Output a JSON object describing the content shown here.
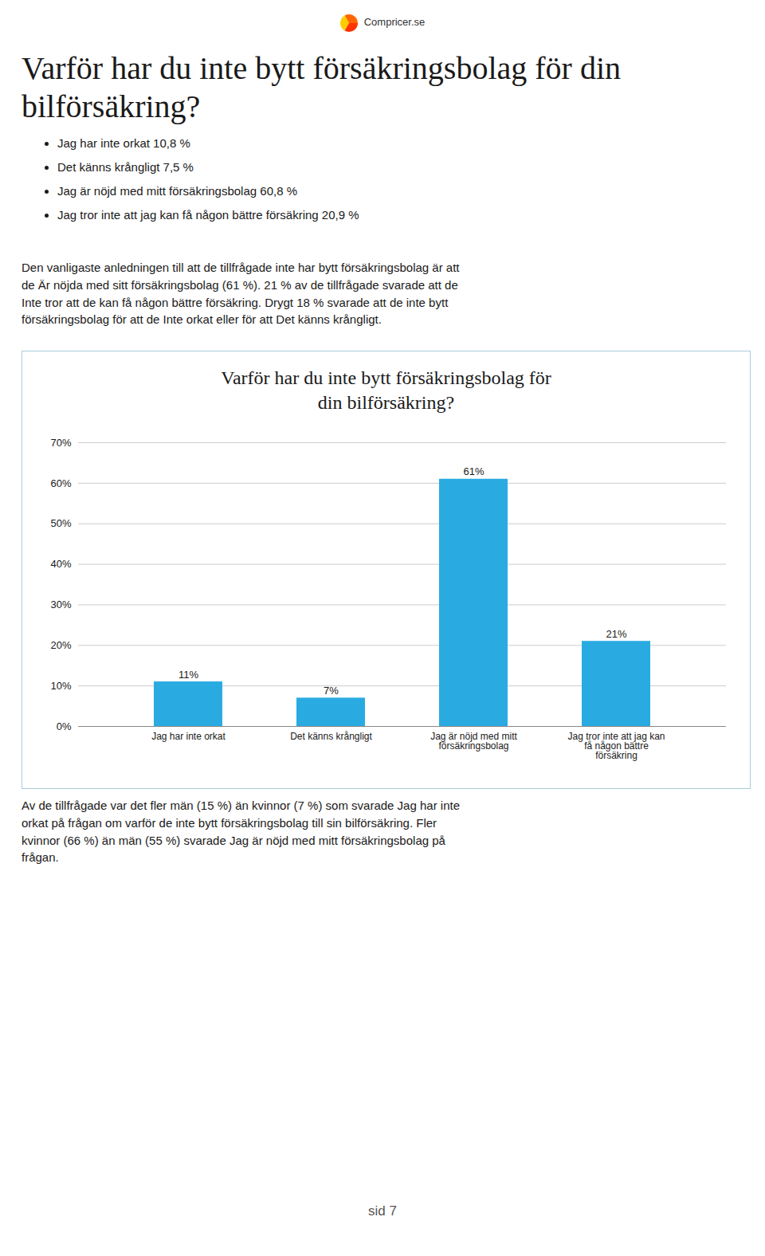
{
  "title": "Varför har du inte bytt försäkringsbolag för din\nbilförsäkring?",
  "annotations": [
    "Compricer.se",
    "Jag har inte orkat 10,8 %",
    "Det känns krångligt 7,5 %",
    "Jag är nöjd med mitt försäkringsbolag 60,8 %",
    "Jag tror inte att jag kan få någon bättre försäkring 20,9 %",
    "Den vanligaste anledningen till att de tillfrågade inte har bytt försäkringsbolag är att\nde Är nöjda med sitt försäkringsbolag (61 %). 21 % av de tillfrågade svarade att de\nInte tror att de kan få någon bättre försäkring. Drygt 18 % svarade att de inte bytt\nförsäkringsbolag för att de Inte orkat eller för att Det känns krångligt.",
    "Av de tillfrågade var det fler män (15 %) än kvinnor (7 %) som svarade Jag har inte\norkat på frågan om varför de inte bytt försäkringsbolag till sin bilförsäkring. Fler\nkvinnor (66 %) än män (55 %) svarade Jag är nöjd med mitt försäkringsbolag på\nfrågan.",
    "sid 7"
  ],
  "chart_data": {
    "type": "bar",
    "title": "Varför har du inte bytt försäkringsbolag för\ndin bilförsäkring?",
    "categories": [
      "Jag har inte orkat",
      "Det känns krångligt",
      "Jag är nöjd med mitt\nförsäkringsbolag",
      "Jag tror inte att jag kan\nfå någon bättre\nförsäkring"
    ],
    "values": [
      11,
      7,
      61,
      21
    ],
    "value_labels": [
      "11%",
      "7%",
      "61%",
      "21%"
    ],
    "data_labels": true,
    "color": "#29ABE2",
    "ylim": [
      0,
      70
    ],
    "yticks": [
      {
        "value": 0,
        "label": "0%"
      },
      {
        "value": 10,
        "label": "10%"
      },
      {
        "value": 20,
        "label": "20%"
      },
      {
        "value": 30,
        "label": "30%"
      },
      {
        "value": 40,
        "label": "40%"
      },
      {
        "value": 50,
        "label": "50%"
      },
      {
        "value": 60,
        "label": "60%"
      },
      {
        "value": 70,
        "label": "70%"
      }
    ],
    "grid": true
  }
}
